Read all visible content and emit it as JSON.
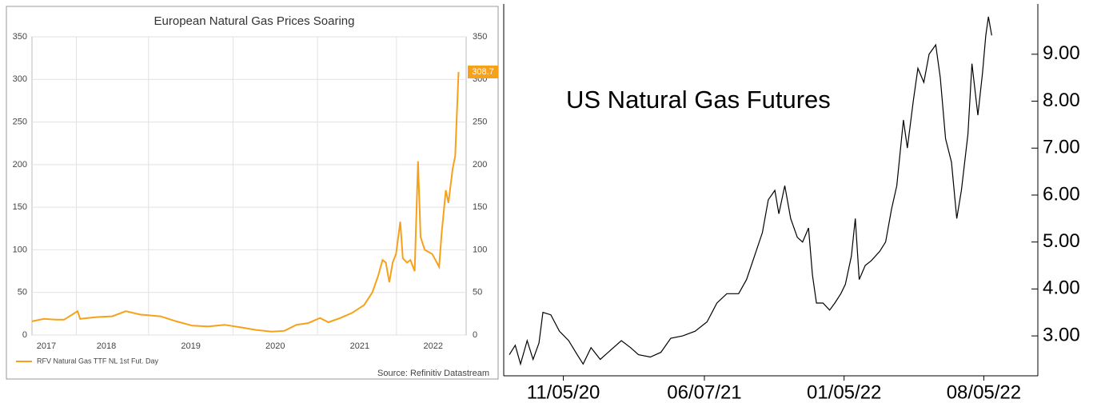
{
  "chart_data": [
    {
      "type": "line",
      "title": "European Natural Gas Prices Soaring",
      "source": "Source: Refinitiv Datastream",
      "x": [
        2017.62,
        2017.76,
        2017.9,
        2018.0,
        2018.16,
        2018.19,
        2018.38,
        2018.57,
        2018.73,
        2018.9,
        2019.14,
        2019.33,
        2019.52,
        2019.71,
        2019.9,
        2020.09,
        2020.27,
        2020.46,
        2020.61,
        2020.75,
        2020.89,
        2021.03,
        2021.13,
        2021.27,
        2021.41,
        2021.55,
        2021.65,
        2021.72,
        2021.77,
        2021.81,
        2021.85,
        2021.89,
        2021.93,
        2021.98,
        2022.01,
        2022.06,
        2022.1,
        2022.15,
        2022.19,
        2022.22,
        2022.27,
        2022.36,
        2022.44,
        2022.47,
        2022.52,
        2022.55,
        2022.6,
        2022.63,
        2022.67
      ],
      "series": [
        {
          "name": "RFV Natural Gas TTF NL 1st Fut. Day",
          "color": "#f7a11a",
          "values": [
            16,
            19,
            18,
            18,
            28,
            19,
            21,
            22,
            28,
            24,
            22,
            16,
            11,
            10,
            12,
            9,
            6,
            4,
            5,
            12,
            14,
            20,
            15,
            20,
            26,
            35,
            50,
            70,
            88,
            85,
            62,
            85,
            95,
            133,
            90,
            85,
            88,
            75,
            204,
            115,
            100,
            95,
            80,
            120,
            170,
            155,
            195,
            210,
            308.7
          ]
        }
      ],
      "xlim": [
        2017.62,
        2022.76
      ],
      "xticks": [
        {
          "value": 2017.79,
          "label": "2017"
        },
        {
          "value": 2018.5,
          "label": "2018"
        },
        {
          "value": 2019.5,
          "label": "2019"
        },
        {
          "value": 2020.5,
          "label": "2020"
        },
        {
          "value": 2021.5,
          "label": "2021"
        },
        {
          "value": 2022.37,
          "label": "2022"
        }
      ],
      "ylim": [
        0,
        350
      ],
      "yticks": [
        0,
        50,
        100,
        150,
        200,
        250,
        300,
        350
      ],
      "grid": true
    },
    {
      "type": "line",
      "title": "US Natural Gas Futures",
      "x": [
        "08/15/20",
        "08/24/20",
        "09/01/20",
        "09/11/20",
        "09/20/20",
        "09/29/20",
        "10/05/20",
        "10/17/20",
        "10/30/20",
        "11/13/20",
        "11/26/20",
        "12/05/20",
        "12/17/20",
        "12/31/20",
        "01/16/21",
        "02/01/21",
        "02/15/21",
        "02/27/21",
        "03/17/21",
        "04/02/21",
        "04/17/21",
        "05/05/21",
        "05/24/21",
        "06/11/21",
        "06/26/21",
        "07/11/21",
        "07/29/21",
        "08/10/21",
        "08/22/21",
        "09/03/21",
        "09/12/21",
        "09/22/21",
        "09/28/21",
        "10/07/21",
        "10/16/21",
        "10/26/21",
        "11/03/21",
        "11/12/21",
        "11/18/21",
        "11/24/21",
        "12/04/21",
        "12/14/21",
        "12/22/21",
        "12/31/21",
        "01/07/22",
        "01/16/22",
        "01/22/22",
        "01/28/22",
        "02/06/22",
        "02/15/22",
        "02/28/22",
        "03/09/22",
        "03/18/22",
        "03/26/22",
        "04/05/22",
        "04/11/22",
        "04/20/22",
        "04/27/22",
        "05/06/22",
        "05/14/22",
        "05/24/22",
        "05/31/22",
        "06/08/22",
        "06/17/22",
        "06/25/22",
        "07/02/22",
        "07/12/22",
        "07/18/22",
        "07/27/22",
        "08/03/22",
        "08/08/22",
        "08/12/22",
        "08/17/22"
      ],
      "series": [
        {
          "color": "#000000",
          "values": [
            2.6,
            2.8,
            2.4,
            2.9,
            2.5,
            2.85,
            3.5,
            3.45,
            3.1,
            2.9,
            2.6,
            2.4,
            2.75,
            2.5,
            2.7,
            2.9,
            2.75,
            2.6,
            2.55,
            2.65,
            2.95,
            3.0,
            3.1,
            3.3,
            3.7,
            3.9,
            3.9,
            4.2,
            4.7,
            5.2,
            5.9,
            6.1,
            5.6,
            6.2,
            5.5,
            5.1,
            5.0,
            5.3,
            4.3,
            3.7,
            3.7,
            3.55,
            3.7,
            3.9,
            4.1,
            4.7,
            5.5,
            4.2,
            4.5,
            4.6,
            4.8,
            5.0,
            5.7,
            6.2,
            7.6,
            7.0,
            8.0,
            8.7,
            8.4,
            9.0,
            9.2,
            8.5,
            7.2,
            6.7,
            5.5,
            6.1,
            7.3,
            8.8,
            7.7,
            8.6,
            9.4,
            9.8,
            9.4
          ]
        }
      ],
      "xlim": [
        "08/15/20",
        "10/26/22"
      ],
      "xticks": [
        "11/05/20",
        "06/07/21",
        "01/05/22",
        "08/05/22"
      ],
      "ylim": [
        2.15,
        10.07
      ],
      "yticks": [
        {
          "value": 3,
          "label": "3.00"
        },
        {
          "value": 4,
          "label": "4.00"
        },
        {
          "value": 5,
          "label": "5.00"
        },
        {
          "value": 6,
          "label": "6.00"
        },
        {
          "value": 7,
          "label": "7.00"
        },
        {
          "value": 8,
          "label": "8.00"
        },
        {
          "value": 9,
          "label": "9.00"
        }
      ]
    }
  ]
}
